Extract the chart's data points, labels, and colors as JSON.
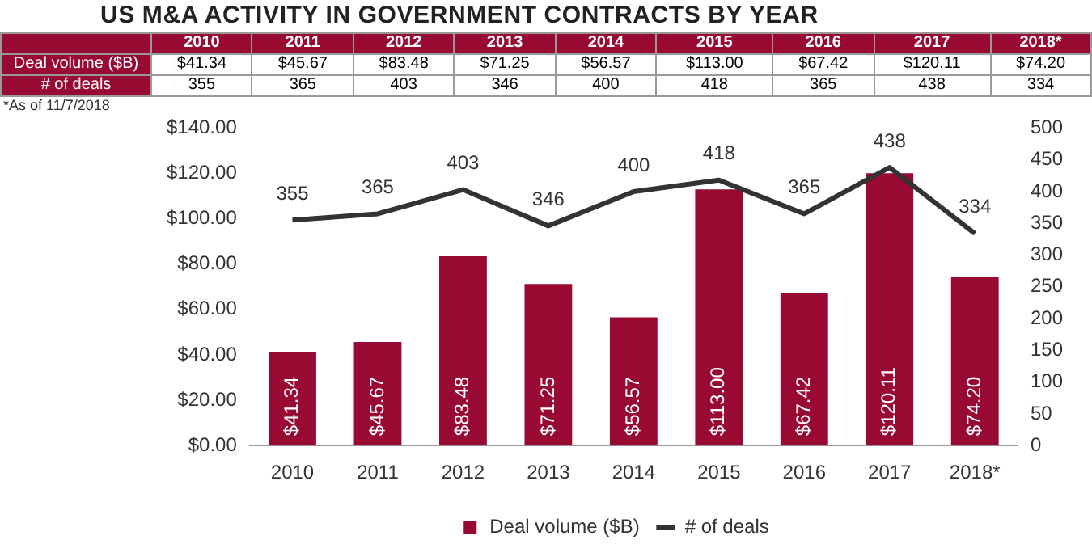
{
  "chart_data": {
    "type": "bar",
    "title": "US M&A ACTIVITY IN GOVERNMENT CONTRACTS BY YEAR",
    "annotations": [
      "*As of 11/7/2018"
    ],
    "categories": [
      "2010",
      "2011",
      "2012",
      "2013",
      "2014",
      "2015",
      "2016",
      "2017",
      "2018*"
    ],
    "series": [
      {
        "name": "Deal volume ($B)",
        "color": "#990a33",
        "values": [
          41.34,
          45.67,
          83.48,
          71.25,
          56.57,
          113.0,
          67.42,
          120.11,
          74.2
        ],
        "value_labels": [
          "$41.34",
          "$45.67",
          "$83.48",
          "$71.25",
          "$56.57",
          "$113.00",
          "$67.42",
          "$120.11",
          "$74.20"
        ]
      },
      {
        "name": "# of deals",
        "type": "line",
        "axis": "y2",
        "color": "#333333",
        "values": [
          355,
          365,
          403,
          346,
          400,
          418,
          365,
          438,
          334
        ],
        "value_labels": [
          "355",
          "365",
          "403",
          "346",
          "400",
          "418",
          "365",
          "438",
          "334"
        ]
      }
    ],
    "ylim": [
      0,
      140
    ],
    "yticks": [
      {
        "value": 0,
        "label": "$0.00"
      },
      {
        "value": 20,
        "label": "$20.00"
      },
      {
        "value": 40,
        "label": "$40.00"
      },
      {
        "value": 60,
        "label": "$60.00"
      },
      {
        "value": 80,
        "label": "$80.00"
      },
      {
        "value": 100,
        "label": "$100.00"
      },
      {
        "value": 120,
        "label": "$120.00"
      },
      {
        "value": 140,
        "label": "$140.00"
      }
    ],
    "y2lim": [
      0,
      500
    ],
    "y2ticks": [
      0,
      50,
      100,
      150,
      200,
      250,
      300,
      350,
      400,
      450,
      500
    ],
    "data_labels": true,
    "grid": false,
    "legend": "bottom",
    "marker": "none",
    "line_style": "solid"
  }
}
